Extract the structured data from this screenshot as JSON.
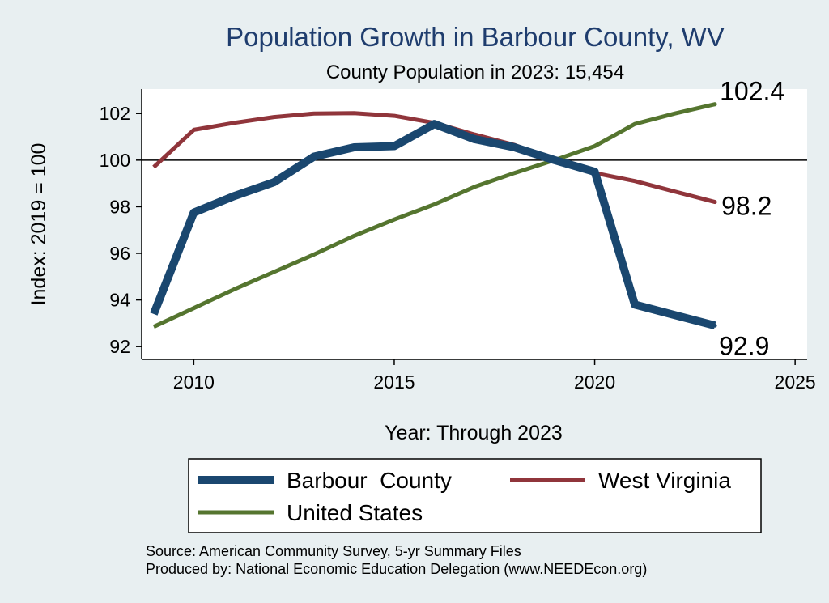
{
  "chart_data": {
    "type": "line",
    "title": "Population Growth in Barbour County, WV",
    "subtitle": "County Population in 2023: 15,454",
    "xlabel": "Year: Through 2023",
    "ylabel": "Index: 2019 = 100",
    "xlim": [
      2008.7,
      2025.3
    ],
    "ylim": [
      91.45,
      103.05
    ],
    "xticks": [
      2010,
      2015,
      2020,
      2025
    ],
    "yticks": [
      92,
      94,
      96,
      98,
      100,
      102
    ],
    "reference_line": 100,
    "grid": false,
    "x": [
      2009,
      2010,
      2011,
      2012,
      2013,
      2014,
      2015,
      2016,
      2017,
      2018,
      2019,
      2020,
      2021,
      2022,
      2023
    ],
    "series": [
      {
        "name": "Barbour  County",
        "color": "#1a476f",
        "values": [
          93.4,
          97.75,
          98.45,
          99.05,
          100.15,
          100.55,
          100.6,
          101.55,
          100.9,
          100.55,
          100.0,
          99.5,
          93.8,
          93.35,
          92.9
        ],
        "end_label": "92.9"
      },
      {
        "name": "West Virginia",
        "color": "#90353b",
        "values": [
          99.7,
          101.3,
          101.6,
          101.85,
          102.0,
          102.02,
          101.9,
          101.6,
          101.1,
          100.65,
          100.0,
          99.45,
          99.1,
          98.65,
          98.2
        ],
        "end_label": "98.2"
      },
      {
        "name": "United States",
        "color": "#55752f",
        "values": [
          92.85,
          93.65,
          94.45,
          95.2,
          95.95,
          96.75,
          97.45,
          98.1,
          98.85,
          99.45,
          100.0,
          100.6,
          101.55,
          102.0,
          102.4
        ],
        "end_label": "102.4"
      }
    ],
    "legend": {
      "position": "bottom",
      "items": [
        "Barbour  County",
        "West Virginia",
        "United States"
      ]
    },
    "notes": [
      "Source: American Community Survey, 5-yr Summary Files",
      "Produced by: National Economic Education Delegation (www.NEEDEcon.org)"
    ]
  },
  "colors": {
    "background": "#e8eff1",
    "plot_background": "#ffffff",
    "title": "#1f3d6e"
  }
}
